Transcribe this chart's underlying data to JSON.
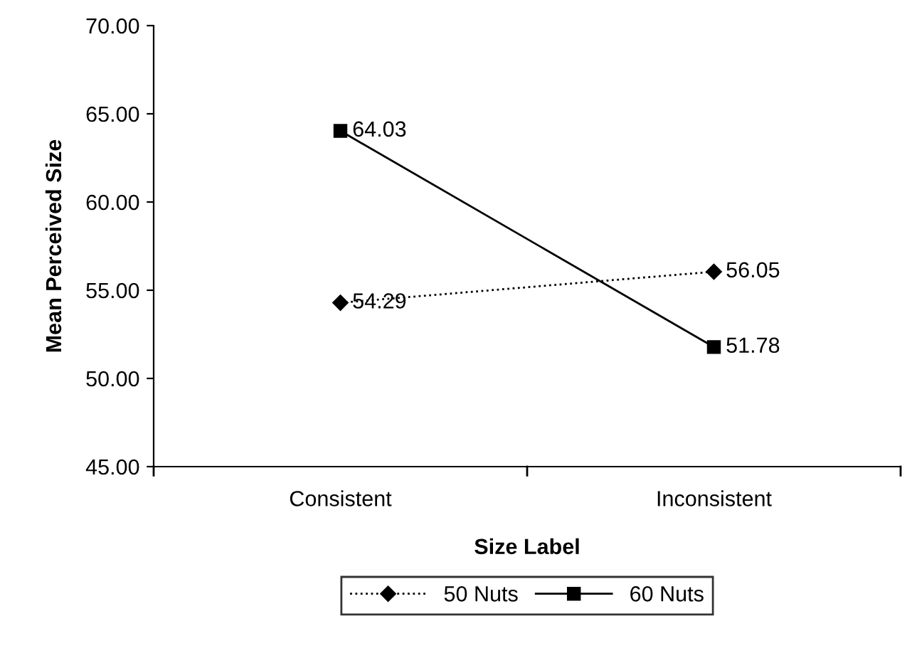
{
  "chart_data": {
    "type": "line",
    "xlabel": "Size Label",
    "ylabel": "Mean Perceived Size",
    "categories": [
      "Consistent",
      "Inconsistent"
    ],
    "series": [
      {
        "name": "50 Nuts",
        "color": "#000000",
        "values": [
          54.29,
          56.05
        ],
        "marker": "diamond",
        "line_style": "dotted"
      },
      {
        "name": "60 Nuts",
        "color": "#000000",
        "values": [
          64.03,
          51.78
        ],
        "marker": "square",
        "line_style": "solid"
      }
    ],
    "ylim": [
      45,
      70
    ],
    "yticks": [
      {
        "value": 45,
        "label": "45.00"
      },
      {
        "value": 50,
        "label": "50.00"
      },
      {
        "value": 55,
        "label": "55.00"
      },
      {
        "value": 60,
        "label": "60.00"
      },
      {
        "value": 65,
        "label": "65.00"
      },
      {
        "value": 70,
        "label": "70.00"
      }
    ],
    "data_labels": true,
    "grid": false,
    "legend": "bottom"
  }
}
